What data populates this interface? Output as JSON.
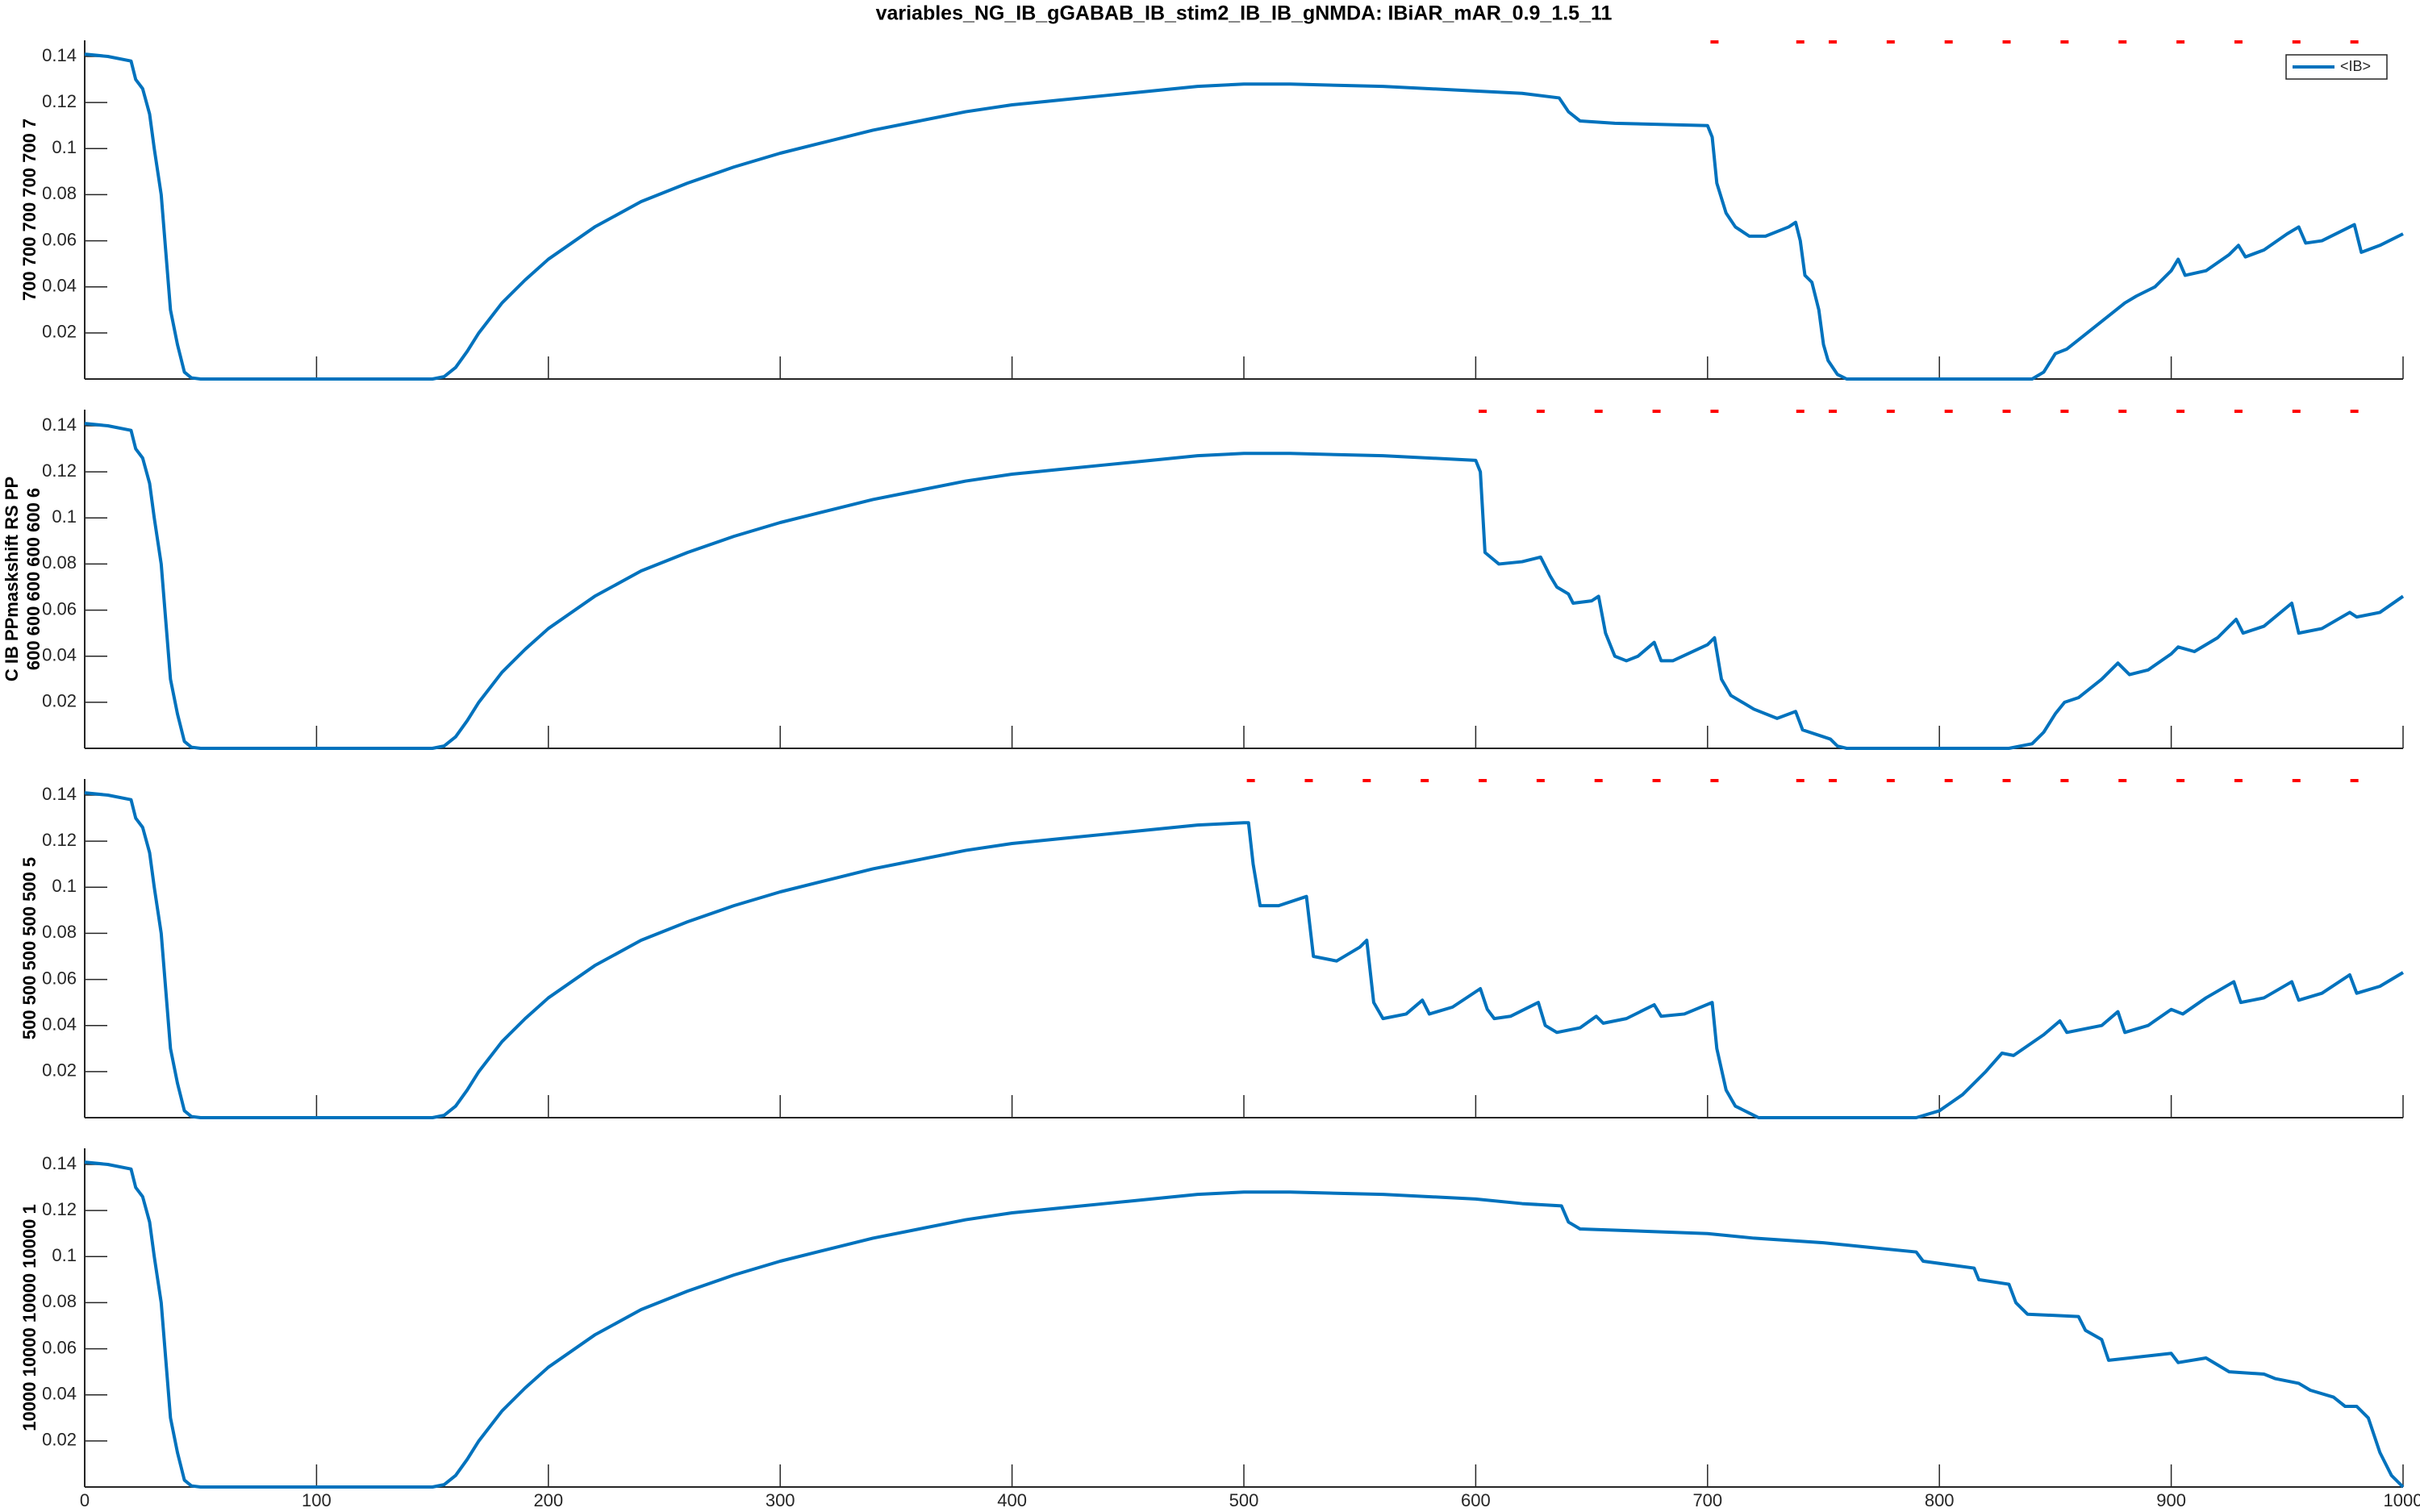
{
  "chart_data": [
    {
      "type": "line",
      "title": "variables_NG_IB_gGABAB_IB_stim2_IB_IB_gNMDA: IBiAR_mAR_0.9_1.5_11",
      "ylabel": "700 700 700 700 700 7",
      "x": [
        0,
        10,
        20,
        22,
        25,
        28,
        30,
        33,
        35,
        37,
        40,
        43,
        46,
        50,
        100,
        150,
        155,
        160,
        165,
        170,
        180,
        190,
        200,
        220,
        240,
        260,
        280,
        300,
        320,
        340,
        360,
        380,
        400,
        420,
        440,
        460,
        480,
        500,
        520,
        560,
        600,
        620,
        636,
        640,
        645,
        660,
        700,
        702,
        704,
        708,
        712,
        718,
        725,
        735,
        738,
        740,
        742,
        745,
        748,
        750,
        752,
        756,
        760,
        840,
        845,
        850,
        855,
        860,
        870,
        880,
        885,
        893,
        900,
        903,
        906,
        915,
        925,
        929,
        932,
        940,
        950,
        955,
        958,
        965,
        975,
        979,
        982,
        990,
        1000
      ],
      "series": [
        {
          "name": "<IB>",
          "color": "#0072bd",
          "values": [
            0.141,
            0.14,
            0.138,
            0.13,
            0.126,
            0.115,
            0.1,
            0.08,
            0.055,
            0.03,
            0.015,
            0.003,
            0.0005,
            0,
            0,
            0,
            0.001,
            0.005,
            0.012,
            0.02,
            0.033,
            0.043,
            0.052,
            0.066,
            0.077,
            0.085,
            0.092,
            0.098,
            0.103,
            0.108,
            0.112,
            0.116,
            0.119,
            0.121,
            0.123,
            0.125,
            0.127,
            0.128,
            0.128,
            0.127,
            0.125,
            0.124,
            0.122,
            0.116,
            0.112,
            0.111,
            0.11,
            0.105,
            0.085,
            0.072,
            0.066,
            0.062,
            0.062,
            0.066,
            0.068,
            0.06,
            0.045,
            0.042,
            0.03,
            0.015,
            0.008,
            0.002,
            0,
            0,
            0.003,
            0.011,
            0.013,
            0.017,
            0.025,
            0.033,
            0.036,
            0.04,
            0.047,
            0.052,
            0.045,
            0.047,
            0.054,
            0.058,
            0.053,
            0.056,
            0.063,
            0.066,
            0.059,
            0.06,
            0.065,
            0.067,
            0.055,
            0.058,
            0.063
          ]
        }
      ],
      "markers": {
        "color": "#ff0000",
        "x": [
          703,
          740,
          754,
          779,
          804,
          829,
          854,
          879,
          904,
          929,
          954,
          979
        ]
      },
      "legend": "upper right",
      "xlim": [
        0,
        1000
      ],
      "xticks": [
        0,
        100,
        200,
        300,
        400,
        500,
        600,
        700,
        800,
        900,
        1000
      ],
      "ylim": [
        0,
        0.147
      ],
      "yticks": [
        0.02,
        0.04,
        0.06,
        0.08,
        0.1,
        0.12,
        0.14
      ]
    },
    {
      "type": "line",
      "ylabel": [
        "C IB PPmaskshift RS PP",
        "600 600 600 600 600 6"
      ],
      "x": [
        0,
        10,
        20,
        22,
        25,
        28,
        30,
        33,
        35,
        37,
        40,
        43,
        46,
        50,
        100,
        150,
        155,
        160,
        165,
        170,
        180,
        190,
        200,
        220,
        240,
        260,
        280,
        300,
        320,
        340,
        360,
        380,
        400,
        420,
        440,
        460,
        480,
        500,
        520,
        560,
        600,
        602,
        604,
        610,
        620,
        628,
        632,
        635,
        640,
        642,
        650,
        653,
        656,
        660,
        665,
        670,
        677,
        680,
        685,
        700,
        703,
        706,
        710,
        715,
        720,
        730,
        738,
        741,
        750,
        753,
        756,
        760,
        830,
        840,
        845,
        850,
        854,
        860,
        870,
        877,
        882,
        890,
        900,
        903,
        910,
        920,
        928,
        931,
        940,
        952,
        955,
        965,
        977,
        980,
        990,
        1000
      ],
      "series": [
        {
          "color": "#0072bd",
          "values": [
            0.141,
            0.14,
            0.138,
            0.13,
            0.126,
            0.115,
            0.1,
            0.08,
            0.055,
            0.03,
            0.015,
            0.003,
            0.0005,
            0,
            0,
            0,
            0.001,
            0.005,
            0.012,
            0.02,
            0.033,
            0.043,
            0.052,
            0.066,
            0.077,
            0.085,
            0.092,
            0.098,
            0.103,
            0.108,
            0.112,
            0.116,
            0.119,
            0.121,
            0.123,
            0.125,
            0.127,
            0.128,
            0.128,
            0.127,
            0.125,
            0.12,
            0.085,
            0.08,
            0.081,
            0.083,
            0.075,
            0.07,
            0.067,
            0.063,
            0.064,
            0.066,
            0.05,
            0.04,
            0.038,
            0.04,
            0.046,
            0.038,
            0.038,
            0.045,
            0.048,
            0.03,
            0.023,
            0.02,
            0.017,
            0.013,
            0.016,
            0.008,
            0.005,
            0.004,
            0.001,
            0,
            0,
            0.002,
            0.007,
            0.015,
            0.02,
            0.022,
            0.03,
            0.037,
            0.032,
            0.034,
            0.041,
            0.044,
            0.042,
            0.048,
            0.056,
            0.05,
            0.053,
            0.063,
            0.05,
            0.052,
            0.059,
            0.057,
            0.059,
            0.066
          ]
        }
      ],
      "markers": {
        "color": "#ff0000",
        "x": [
          603,
          628,
          653,
          678,
          703,
          740,
          754,
          779,
          804,
          829,
          854,
          879,
          904,
          929,
          954,
          979
        ]
      },
      "xlim": [
        0,
        1000
      ],
      "xticks": [
        0,
        100,
        200,
        300,
        400,
        500,
        600,
        700,
        800,
        900,
        1000
      ],
      "ylim": [
        0,
        0.147
      ],
      "yticks": [
        0.02,
        0.04,
        0.06,
        0.08,
        0.1,
        0.12,
        0.14
      ]
    },
    {
      "type": "line",
      "ylabel": "500 500 500 500 500 5",
      "x": [
        0,
        10,
        20,
        22,
        25,
        28,
        30,
        33,
        35,
        37,
        40,
        43,
        46,
        50,
        100,
        150,
        155,
        160,
        165,
        170,
        180,
        190,
        200,
        220,
        240,
        260,
        280,
        300,
        320,
        340,
        360,
        380,
        400,
        420,
        440,
        460,
        480,
        500,
        502,
        504,
        507,
        515,
        527,
        530,
        540,
        550,
        553,
        556,
        560,
        570,
        577,
        580,
        590,
        602,
        605,
        608,
        615,
        627,
        630,
        635,
        645,
        652,
        655,
        665,
        677,
        680,
        690,
        702,
        704,
        708,
        712,
        718,
        722,
        790,
        800,
        810,
        820,
        827,
        832,
        845,
        852,
        855,
        870,
        877,
        880,
        890,
        900,
        905,
        915,
        927,
        930,
        940,
        952,
        955,
        965,
        977,
        980,
        990,
        1000
      ],
      "series": [
        {
          "color": "#0072bd",
          "values": [
            0.141,
            0.14,
            0.138,
            0.13,
            0.126,
            0.115,
            0.1,
            0.08,
            0.055,
            0.03,
            0.015,
            0.003,
            0.0005,
            0,
            0,
            0,
            0.001,
            0.005,
            0.012,
            0.02,
            0.033,
            0.043,
            0.052,
            0.066,
            0.077,
            0.085,
            0.092,
            0.098,
            0.103,
            0.108,
            0.112,
            0.116,
            0.119,
            0.121,
            0.123,
            0.125,
            0.127,
            0.128,
            0.128,
            0.11,
            0.092,
            0.092,
            0.096,
            0.07,
            0.068,
            0.074,
            0.077,
            0.05,
            0.043,
            0.045,
            0.051,
            0.045,
            0.048,
            0.056,
            0.047,
            0.043,
            0.044,
            0.05,
            0.04,
            0.037,
            0.039,
            0.044,
            0.041,
            0.043,
            0.049,
            0.044,
            0.045,
            0.05,
            0.03,
            0.012,
            0.005,
            0.002,
            0,
            0,
            0.003,
            0.01,
            0.02,
            0.028,
            0.027,
            0.036,
            0.042,
            0.037,
            0.04,
            0.046,
            0.037,
            0.04,
            0.047,
            0.045,
            0.052,
            0.059,
            0.05,
            0.052,
            0.059,
            0.051,
            0.054,
            0.062,
            0.054,
            0.057,
            0.063
          ]
        }
      ],
      "markers": {
        "color": "#ff0000",
        "x": [
          503,
          528,
          553,
          578,
          603,
          628,
          653,
          678,
          703,
          740,
          754,
          779,
          804,
          829,
          854,
          879,
          904,
          929,
          954,
          979
        ]
      },
      "xlim": [
        0,
        1000
      ],
      "xticks": [
        0,
        100,
        200,
        300,
        400,
        500,
        600,
        700,
        800,
        900,
        1000
      ],
      "ylim": [
        0,
        0.147
      ],
      "yticks": [
        0.02,
        0.04,
        0.06,
        0.08,
        0.1,
        0.12,
        0.14
      ]
    },
    {
      "type": "line",
      "ylabel": "10000 10000 10000 10000 1",
      "x": [
        0,
        10,
        20,
        22,
        25,
        28,
        30,
        33,
        35,
        37,
        40,
        43,
        46,
        50,
        100,
        150,
        155,
        160,
        165,
        170,
        180,
        190,
        200,
        220,
        240,
        260,
        280,
        300,
        320,
        340,
        360,
        380,
        400,
        420,
        440,
        460,
        480,
        500,
        520,
        560,
        600,
        620,
        637,
        640,
        645,
        700,
        720,
        750,
        770,
        790,
        793,
        815,
        817,
        830,
        833,
        838,
        860,
        863,
        870,
        873,
        900,
        903,
        915,
        925,
        940,
        945,
        955,
        960,
        970,
        975,
        980,
        985,
        990,
        995,
        1000
      ],
      "series": [
        {
          "color": "#0072bd",
          "values": [
            0.141,
            0.14,
            0.138,
            0.13,
            0.126,
            0.115,
            0.1,
            0.08,
            0.055,
            0.03,
            0.015,
            0.003,
            0.0005,
            0,
            0,
            0,
            0.001,
            0.005,
            0.012,
            0.02,
            0.033,
            0.043,
            0.052,
            0.066,
            0.077,
            0.085,
            0.092,
            0.098,
            0.103,
            0.108,
            0.112,
            0.116,
            0.119,
            0.121,
            0.123,
            0.125,
            0.127,
            0.128,
            0.128,
            0.127,
            0.125,
            0.123,
            0.122,
            0.115,
            0.112,
            0.11,
            0.108,
            0.106,
            0.104,
            0.102,
            0.098,
            0.095,
            0.09,
            0.088,
            0.08,
            0.075,
            0.074,
            0.068,
            0.064,
            0.055,
            0.058,
            0.054,
            0.056,
            0.05,
            0.049,
            0.047,
            0.045,
            0.042,
            0.039,
            0.035,
            0.035,
            0.03,
            0.015,
            0.005,
            0
          ]
        }
      ],
      "xlim": [
        0,
        1000
      ],
      "xticks": [
        0,
        100,
        200,
        300,
        400,
        500,
        600,
        700,
        800,
        900,
        1000
      ],
      "ylim": [
        0,
        0.147
      ],
      "yticks": [
        0.02,
        0.04,
        0.06,
        0.08,
        0.1,
        0.12,
        0.14
      ]
    }
  ]
}
